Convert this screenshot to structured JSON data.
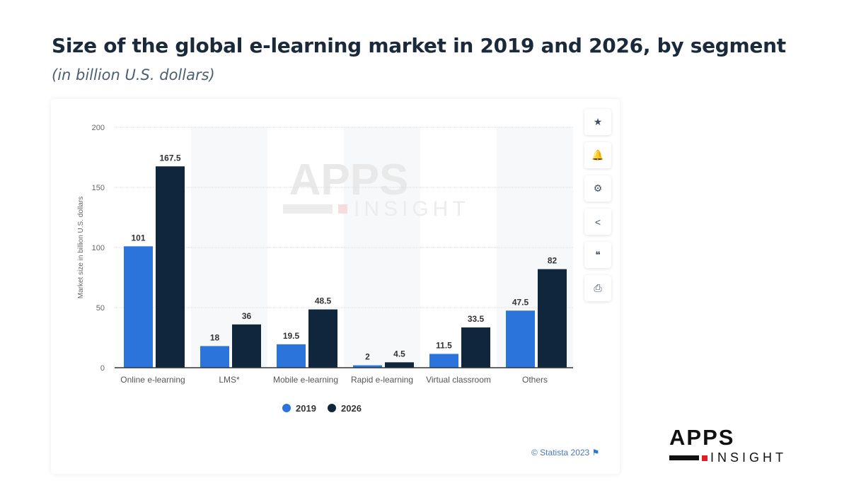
{
  "title": "Size of the global e-learning market in 2019 and 2026, by segment",
  "subtitle": "(in billion U.S. dollars)",
  "credit": "© Statista 2023",
  "watermark": "APPS INSIGHT",
  "logo": {
    "top": "APPS",
    "bottom": "INSIGHT"
  },
  "tools": [
    {
      "icon": "star-icon",
      "glyph": "★"
    },
    {
      "icon": "bell-icon",
      "glyph": "🔔"
    },
    {
      "icon": "gear-icon",
      "glyph": "⚙"
    },
    {
      "icon": "share-icon",
      "glyph": "<"
    },
    {
      "icon": "quote-icon",
      "glyph": "❝"
    },
    {
      "icon": "print-icon",
      "glyph": "⎙"
    }
  ],
  "chart_data": {
    "type": "bar",
    "title": "Size of the global e-learning market in 2019 and 2026, by segment",
    "ylabel": "Market size in billion U.S. dollars",
    "xlabel": "",
    "ylim": [
      0,
      200
    ],
    "yticks": [
      0,
      50,
      100,
      150,
      200
    ],
    "grid": true,
    "legend": "bottom",
    "categories": [
      "Online e-learning",
      "LMS*",
      "Mobile e-learning",
      "Rapid e-learning",
      "Virtual classroom",
      "Others"
    ],
    "series": [
      {
        "name": "2019",
        "color": "#2a74db",
        "values": [
          101,
          18,
          19.5,
          2,
          11.5,
          47.5
        ]
      },
      {
        "name": "2026",
        "color": "#10263d",
        "values": [
          167.5,
          36,
          48.5,
          4.5,
          33.5,
          82
        ]
      }
    ]
  }
}
